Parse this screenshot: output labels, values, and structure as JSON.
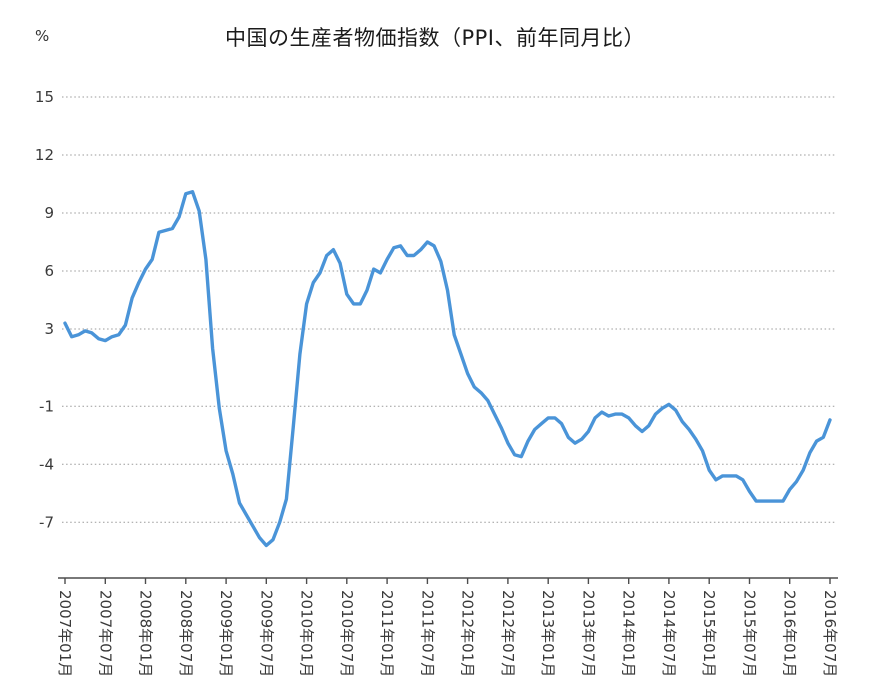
{
  "chart_data": {
    "type": "line",
    "title": "中国の生産者物価指数（PPI、前年同月比）",
    "unit": "%",
    "legend": "none",
    "grid": "dotted-horizontal",
    "line_color": "#4A94D8",
    "x_start": "2007年01月",
    "x_end": "2016年07月",
    "x_frequency": "monthly",
    "x_tick_labels": [
      "2007年01月",
      "2007年07月",
      "2008年01月",
      "2008年07月",
      "2009年01月",
      "2009年07月",
      "2010年01月",
      "2010年07月",
      "2011年01月",
      "2011年07月",
      "2012年01月",
      "2012年07月",
      "2013年01月",
      "2013年07月",
      "2014年01月",
      "2014年07月",
      "2015年01月",
      "2015年07月",
      "2016年01月",
      "2016年07月"
    ],
    "y_ticks": [
      15,
      12,
      9,
      6,
      3,
      -1,
      -4,
      -7
    ],
    "ylim": [
      -10,
      16
    ],
    "values": [
      3.3,
      2.6,
      2.7,
      2.9,
      2.8,
      2.5,
      2.4,
      2.6,
      2.7,
      3.2,
      4.6,
      5.4,
      6.1,
      6.6,
      8.0,
      8.1,
      8.2,
      8.8,
      10.0,
      10.1,
      9.1,
      6.6,
      2.0,
      -1.1,
      -3.3,
      -4.5,
      -6.0,
      -6.6,
      -7.2,
      -7.8,
      -8.2,
      -7.9,
      -7.0,
      -5.8,
      -2.1,
      1.7,
      4.3,
      5.4,
      5.9,
      6.8,
      7.1,
      6.4,
      4.8,
      4.3,
      4.3,
      5.0,
      6.1,
      5.9,
      6.6,
      7.2,
      7.3,
      6.8,
      6.8,
      7.1,
      7.5,
      7.3,
      6.5,
      5.0,
      2.7,
      1.7,
      0.7,
      0.0,
      -0.3,
      -0.7,
      -1.4,
      -2.1,
      -2.9,
      -3.5,
      -3.6,
      -2.8,
      -2.2,
      -1.9,
      -1.6,
      -1.6,
      -1.9,
      -2.6,
      -2.9,
      -2.7,
      -2.3,
      -1.6,
      -1.3,
      -1.5,
      -1.4,
      -1.4,
      -1.6,
      -2.0,
      -2.3,
      -2.0,
      -1.4,
      -1.1,
      -0.9,
      -1.2,
      -1.8,
      -2.2,
      -2.7,
      -3.3,
      -4.3,
      -4.8,
      -4.6,
      -4.6,
      -4.6,
      -4.8,
      -5.4,
      -5.9,
      -5.9,
      -5.9,
      -5.9,
      -5.9,
      -5.3,
      -4.9,
      -4.3,
      -3.4,
      -2.8,
      -2.6,
      -1.7
    ]
  }
}
